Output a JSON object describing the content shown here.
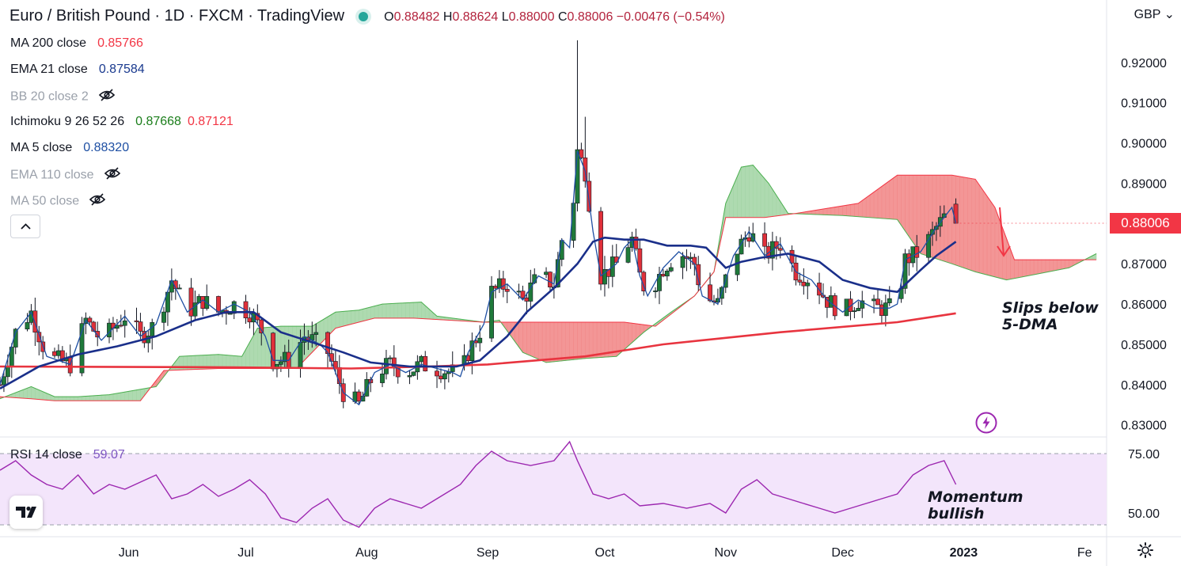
{
  "header": {
    "title": "Euro / British Pound · 1D · FXCM · TradingView",
    "ohlc": {
      "o_label": "O",
      "o": "0.88482",
      "h_label": "H",
      "h": "0.88624",
      "l_label": "L",
      "l": "0.88000",
      "c_label": "C",
      "c": "0.88006",
      "change": "−0.00476 (−0.54%)"
    }
  },
  "currency": "GBP",
  "indicators": [
    {
      "label": "MA 200 close",
      "values": [
        "0.85766"
      ],
      "colors": [
        "#f23645"
      ],
      "hidden": false
    },
    {
      "label": "EMA 21 close",
      "values": [
        "0.87584"
      ],
      "colors": [
        "#1a3a8f"
      ],
      "hidden": false
    },
    {
      "label": "BB 20 close 2",
      "values": [],
      "colors": [],
      "hidden": true
    },
    {
      "label": "Ichimoku 9 26 52 26",
      "values": [
        "0.87668",
        "0.87121"
      ],
      "colors": [
        "#1b7e1b",
        "#f23645"
      ],
      "hidden": false
    },
    {
      "label": "MA 5 close",
      "values": [
        "0.88320"
      ],
      "colors": [
        "#1e4fa3"
      ],
      "hidden": false
    },
    {
      "label": "EMA 110 close",
      "values": [],
      "colors": [],
      "hidden": true
    },
    {
      "label": "MA 50 close",
      "values": [],
      "colors": [],
      "hidden": true
    }
  ],
  "current_price": "0.88006",
  "rsi": {
    "label": "RSI 14 close",
    "value": "59.07",
    "ticks": [
      "75.00",
      "50.00"
    ]
  },
  "annotations": {
    "top_line1": "Slips below",
    "top_line2": "5-DMA",
    "bottom_line1": "Momentum",
    "bottom_line2": "bullish"
  },
  "colors": {
    "up": "#1f7a3a",
    "down": "#e0303a",
    "ma200": "#e8343f",
    "ema21": "#1a2f8a",
    "ma5": "#1e4fa3",
    "cloud_green": "#a5d6a7",
    "cloud_red": "#f28b8b",
    "rsi": "#9c27b0",
    "rsi_band": "#f3e5fb",
    "arrow": "#f23645"
  },
  "chart_data": [
    {
      "type": "candlestick",
      "title": "Euro / British Pound · 1D · FXCM · TradingView",
      "y_ticks": [
        "0.92000",
        "0.91000",
        "0.90000",
        "0.89000",
        "0.88000",
        "0.87000",
        "0.86000",
        "0.85000",
        "0.84000",
        "0.83000"
      ],
      "ylim": [
        0.827,
        0.9355
      ],
      "x_ticks": [
        "Jun",
        "Jul",
        "Aug",
        "Sep",
        "Oct",
        "Nov",
        "Dec",
        "2023",
        "Fe"
      ],
      "x_tick_days": [
        33,
        63,
        94,
        125,
        155,
        186,
        216,
        247,
        278
      ],
      "x_range_days": [
        0,
        281
      ],
      "x_origin": "2022-04-29",
      "last_candle": {
        "o": 0.88482,
        "h": 0.88624,
        "l": 0.88,
        "c": 0.88006
      },
      "ma200": [
        [
          0,
          0.8445
        ],
        [
          60,
          0.8443
        ],
        [
          90,
          0.844
        ],
        [
          110,
          0.8445
        ],
        [
          125,
          0.845
        ],
        [
          150,
          0.847
        ],
        [
          170,
          0.85
        ],
        [
          200,
          0.853
        ],
        [
          230,
          0.8555
        ],
        [
          245,
          0.8577
        ]
      ],
      "ema21": [
        [
          0,
          0.839
        ],
        [
          10,
          0.8445
        ],
        [
          20,
          0.8475
        ],
        [
          30,
          0.8495
        ],
        [
          40,
          0.852
        ],
        [
          50,
          0.856
        ],
        [
          58,
          0.858
        ],
        [
          65,
          0.858
        ],
        [
          72,
          0.853
        ],
        [
          80,
          0.8505
        ],
        [
          88,
          0.848
        ],
        [
          95,
          0.8455
        ],
        [
          105,
          0.8445
        ],
        [
          117,
          0.8445
        ],
        [
          123,
          0.846
        ],
        [
          130,
          0.852
        ],
        [
          135,
          0.858
        ],
        [
          142,
          0.864
        ],
        [
          148,
          0.87
        ],
        [
          152,
          0.8755
        ],
        [
          155,
          0.8765
        ],
        [
          160,
          0.876
        ],
        [
          165,
          0.876
        ],
        [
          171,
          0.8745
        ],
        [
          177,
          0.8745
        ],
        [
          181,
          0.874
        ],
        [
          186,
          0.869
        ],
        [
          190,
          0.8705
        ],
        [
          195,
          0.8715
        ],
        [
          202,
          0.8725
        ],
        [
          210,
          0.8705
        ],
        [
          216,
          0.866
        ],
        [
          223,
          0.864
        ],
        [
          230,
          0.863
        ],
        [
          236,
          0.8685
        ],
        [
          240,
          0.872
        ],
        [
          245,
          0.8755
        ]
      ]
    },
    {
      "type": "line",
      "title": "RSI 14 close",
      "y_ticks": [
        "75.00",
        "50.00"
      ],
      "ylim": [
        40,
        82
      ],
      "band": [
        45,
        75
      ],
      "last_value": 59.07,
      "values": [
        [
          0,
          68
        ],
        [
          4,
          72
        ],
        [
          8,
          66
        ],
        [
          12,
          62
        ],
        [
          16,
          60
        ],
        [
          20,
          66
        ],
        [
          24,
          58
        ],
        [
          28,
          62
        ],
        [
          32,
          60
        ],
        [
          36,
          63
        ],
        [
          40,
          66
        ],
        [
          44,
          56
        ],
        [
          48,
          58
        ],
        [
          52,
          62
        ],
        [
          56,
          57
        ],
        [
          60,
          60
        ],
        [
          64,
          64
        ],
        [
          68,
          58
        ],
        [
          72,
          48
        ],
        [
          76,
          46
        ],
        [
          80,
          52
        ],
        [
          84,
          56
        ],
        [
          88,
          47
        ],
        [
          92,
          44
        ],
        [
          96,
          52
        ],
        [
          100,
          56
        ],
        [
          104,
          54
        ],
        [
          108,
          52
        ],
        [
          112,
          56
        ],
        [
          118,
          62
        ],
        [
          122,
          70
        ],
        [
          126,
          76
        ],
        [
          130,
          72
        ],
        [
          136,
          70
        ],
        [
          142,
          72
        ],
        [
          146,
          80
        ],
        [
          148,
          72
        ],
        [
          152,
          58
        ],
        [
          156,
          56
        ],
        [
          160,
          58
        ],
        [
          164,
          53
        ],
        [
          170,
          54
        ],
        [
          176,
          52
        ],
        [
          182,
          54
        ],
        [
          186,
          50
        ],
        [
          190,
          60
        ],
        [
          194,
          64
        ],
        [
          198,
          58
        ],
        [
          202,
          56
        ],
        [
          206,
          54
        ],
        [
          210,
          52
        ],
        [
          214,
          50
        ],
        [
          218,
          52
        ],
        [
          222,
          54
        ],
        [
          226,
          56
        ],
        [
          230,
          58
        ],
        [
          234,
          66
        ],
        [
          238,
          70
        ],
        [
          242,
          72
        ],
        [
          245,
          62
        ]
      ]
    }
  ]
}
